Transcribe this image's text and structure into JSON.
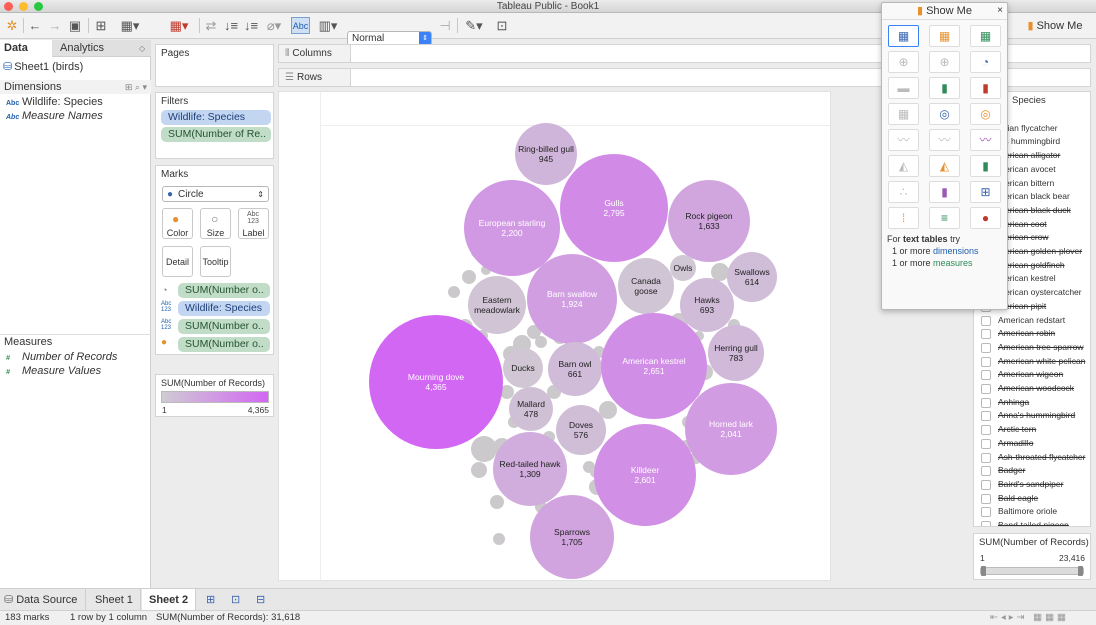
{
  "app": {
    "title": "Tableau Public - Book1"
  },
  "toolbar": {
    "mark_size_select": "Normal",
    "show_me_label": "Show Me",
    "abc_label": "Abc"
  },
  "left": {
    "tabs": [
      "Data",
      "Analytics"
    ],
    "datasource": "Sheet1 (birds)",
    "dimensions_header": "Dimensions",
    "dimensions": [
      "Wildlife: Species",
      "Measure Names"
    ],
    "measures_header": "Measures",
    "measures": [
      "Number of Records",
      "Measure Values"
    ]
  },
  "pages": {
    "title": "Pages"
  },
  "filters": {
    "title": "Filters",
    "pills": [
      "Wildlife: Species",
      "SUM(Number of Re.."
    ]
  },
  "marks": {
    "title": "Marks",
    "type": "Circle",
    "buttons": [
      "Color",
      "Size",
      "Label",
      "Detail",
      "Tooltip"
    ],
    "encodings": [
      "SUM(Number o..",
      "Wildlife: Species",
      "SUM(Number o..",
      "SUM(Number o.."
    ]
  },
  "legend": {
    "title": "SUM(Number of Records)",
    "min": "1",
    "max": "4,365"
  },
  "shelves": {
    "columns": "Columns",
    "rows": "Rows"
  },
  "bubbles": [
    {
      "name": "Ring-billed gull",
      "value": "945"
    },
    {
      "name": "Gulls",
      "value": "2,795"
    },
    {
      "name": "European starling",
      "value": "2,200"
    },
    {
      "name": "Rock pigeon",
      "value": "1,633"
    },
    {
      "name": "Canada goose",
      "value": ""
    },
    {
      "name": "Owls",
      "value": ""
    },
    {
      "name": "Swallows",
      "value": "614"
    },
    {
      "name": "Eastern meadowlark",
      "value": ""
    },
    {
      "name": "Barn swallow",
      "value": "1,924"
    },
    {
      "name": "Hawks",
      "value": "693"
    },
    {
      "name": "Herring gull",
      "value": "783"
    },
    {
      "name": "Mourning dove",
      "value": "4,365"
    },
    {
      "name": "Ducks",
      "value": ""
    },
    {
      "name": "Barn owl",
      "value": "661"
    },
    {
      "name": "American kestrel",
      "value": "2,651"
    },
    {
      "name": "Mallard",
      "value": "478"
    },
    {
      "name": "Doves",
      "value": "576"
    },
    {
      "name": "Horned lark",
      "value": "2,041"
    },
    {
      "name": "Red-tailed hawk",
      "value": "1,309"
    },
    {
      "name": "Killdeer",
      "value": "2,601"
    },
    {
      "name": "Sparrows",
      "value": "1,705"
    }
  ],
  "species_filter": {
    "title": "Species",
    "items": [
      {
        "label": ")",
        "strike": false
      },
      {
        "label": "adian flycatcher",
        "strike": false
      },
      {
        "label": "n's hummingbird",
        "strike": false
      },
      {
        "label": "merican alligator",
        "strike": true
      },
      {
        "label": "merican avocet",
        "strike": false
      },
      {
        "label": "merican bittern",
        "strike": false
      },
      {
        "label": "merican black bear",
        "strike": false
      },
      {
        "label": "merican black duck",
        "strike": true
      },
      {
        "label": "merican coot",
        "strike": true
      },
      {
        "label": "merican crow",
        "strike": true
      },
      {
        "label": "merican golden-plover",
        "strike": true
      },
      {
        "label": "merican goldfinch",
        "strike": true
      },
      {
        "label": "merican kestrel",
        "strike": false
      },
      {
        "label": "merican oystercatcher",
        "strike": false
      },
      {
        "label": "merican pipit",
        "strike": true
      },
      {
        "label": "American redstart",
        "strike": false
      },
      {
        "label": "American robin",
        "strike": true
      },
      {
        "label": "American tree sparrow",
        "strike": true
      },
      {
        "label": "American white pelican",
        "strike": true
      },
      {
        "label": "American wigeon",
        "strike": true
      },
      {
        "label": "American woodcock",
        "strike": true
      },
      {
        "label": "Anhinga",
        "strike": true
      },
      {
        "label": "Anna's hummingbird",
        "strike": true
      },
      {
        "label": "Arctic tern",
        "strike": true
      },
      {
        "label": "Armadillo",
        "strike": true
      },
      {
        "label": "Ash-throated flycatcher",
        "strike": true
      },
      {
        "label": "Badger",
        "strike": true
      },
      {
        "label": "Baird's sandpiper",
        "strike": true
      },
      {
        "label": "Bald eagle",
        "strike": true
      },
      {
        "label": "Baltimore oriole",
        "strike": false
      },
      {
        "label": "Band-tailed pigeon",
        "strike": true
      }
    ]
  },
  "range_filter": {
    "title": "SUM(Number of Records)",
    "min": "1",
    "max": "23,416"
  },
  "showme": {
    "title": "Show Me",
    "hint_prefix": "For",
    "hint_bold": "text tables",
    "hint_suffix": "try",
    "line1_a": "1 or more",
    "line1_b": "dimensions",
    "line2_a": "1 or more",
    "line2_b": "measures"
  },
  "sheets": {
    "data_source": "Data Source",
    "tabs": [
      "Sheet 1",
      "Sheet 2"
    ]
  },
  "status": {
    "marks": "183 marks",
    "layout": "1 row by 1 column",
    "sum": "SUM(Number of Records): 31,618"
  }
}
